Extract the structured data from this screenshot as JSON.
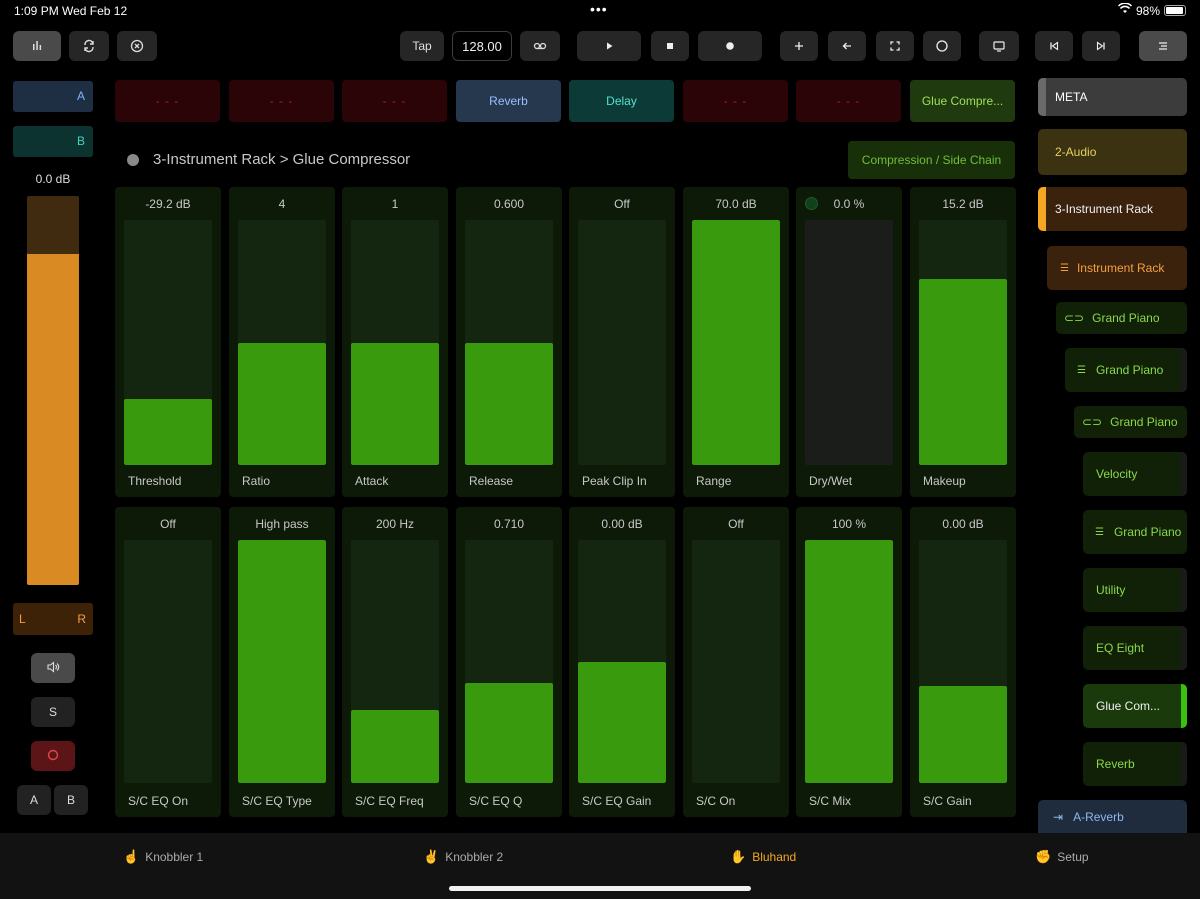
{
  "status": {
    "time": "1:09 PM",
    "date": "Wed Feb 12",
    "battery": "98%"
  },
  "toolbar": {
    "tap_label": "Tap",
    "tempo": "128.00",
    "icons": [
      "mixer-icon",
      "sync-icon",
      "close-circle-icon",
      "loop-icon",
      "play-icon",
      "stop-icon",
      "record-icon",
      "add-icon",
      "back-arrow-icon",
      "fullscreen-icon",
      "circle-icon",
      "screen-icon",
      "skip-back-icon",
      "skip-forward-icon",
      "menu-icon"
    ]
  },
  "left_strip": {
    "slot_a": "A",
    "slot_b": "B",
    "volume": "0.0 dB",
    "volume_level": 0.85,
    "pan_left": "L",
    "pan_right": "R",
    "solo": "S",
    "xfade_a": "A",
    "xfade_b": "B"
  },
  "device_slots": [
    "- - -",
    "- - -",
    "- - -",
    "Reverb",
    "Delay",
    "- - -",
    "- - -",
    "Glue Compre..."
  ],
  "breadcrumb": "3-Instrument Rack > Glue Compressor",
  "bank": "Compression / Side Chain",
  "params_row1": [
    {
      "value": "-29.2 dB",
      "name": "Threshold",
      "level": 0.27
    },
    {
      "value": "4",
      "name": "Ratio",
      "level": 0.5
    },
    {
      "value": "1",
      "name": "Attack",
      "level": 0.5
    },
    {
      "value": "0.600",
      "name": "Release",
      "level": 0.5
    },
    {
      "value": "Off",
      "name": "Peak Clip In",
      "level": 0
    },
    {
      "value": "70.0 dB",
      "name": "Range",
      "level": 1
    },
    {
      "value": "0.0 %",
      "name": "Dry/Wet",
      "level": 0
    },
    {
      "value": "15.2 dB",
      "name": "Makeup",
      "level": 0.76
    }
  ],
  "params_row2": [
    {
      "value": "Off",
      "name": "S/C EQ On",
      "level": 0
    },
    {
      "value": "High pass",
      "name": "S/C EQ Type",
      "level": 1
    },
    {
      "value": "200 Hz",
      "name": "S/C EQ Freq",
      "level": 0.3
    },
    {
      "value": "0.710",
      "name": "S/C EQ Q",
      "level": 0.41
    },
    {
      "value": "0.00 dB",
      "name": "S/C EQ Gain",
      "level": 0.5
    },
    {
      "value": "Off",
      "name": "S/C On",
      "level": 0
    },
    {
      "value": "100 %",
      "name": "S/C Mix",
      "level": 1
    },
    {
      "value": "0.00 dB",
      "name": "S/C Gain",
      "level": 0.4
    }
  ],
  "tracks": {
    "meta": "META",
    "audio": "2-Audio",
    "instrument_rack": "3-Instrument Rack",
    "rack_device": "Instrument Rack",
    "chain1": "Grand Piano",
    "chain1_rack": "Grand Piano",
    "chain2": "Grand Piano",
    "velocity": "Velocity",
    "gp_rack": "Grand Piano",
    "utility": "Utility",
    "eq": "EQ Eight",
    "glue": "Glue Com...",
    "reverb": "Reverb",
    "return": "A-Reverb"
  },
  "tabs": [
    "Knobbler 1",
    "Knobbler 2",
    "Bluhand",
    "Setup"
  ],
  "colors": {
    "accent_green": "#3a9a0e",
    "accent_orange": "#f5a623",
    "record_red": "#d23a3a"
  }
}
